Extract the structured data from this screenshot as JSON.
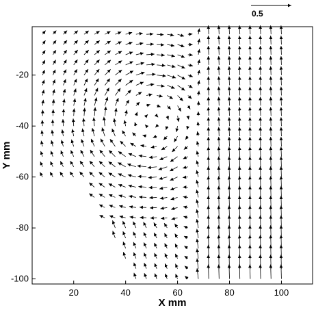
{
  "chart_data": {
    "type": "quiver",
    "xlabel": "X mm",
    "ylabel": "Y mm",
    "xlim": [
      4,
      112
    ],
    "ylim": [
      -102,
      -1
    ],
    "xticks": [
      20,
      40,
      60,
      80,
      100
    ],
    "yticks": [
      -20,
      -40,
      -60,
      -80,
      -100
    ],
    "xtick_labels": [
      "20",
      "40",
      "60",
      "80",
      "100"
    ],
    "ytick_labels": [
      "-20",
      "-40",
      "-60",
      "-80",
      "-100"
    ],
    "reference_vector": {
      "label": "0.5",
      "magnitude": 0.5
    },
    "vortex_center": [
      50,
      -38
    ],
    "grid": false
  }
}
